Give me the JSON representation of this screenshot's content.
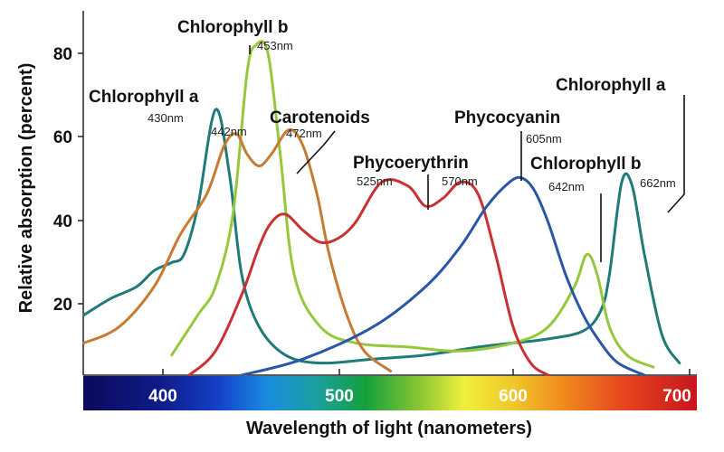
{
  "chart_data": {
    "type": "line",
    "title": "",
    "xlabel": "Wavelength of light (nanometers)",
    "ylabel": "Relative absorption (percent)",
    "xlim": [
      355,
      700
    ],
    "ylim": [
      0,
      88
    ],
    "x_ticks": [
      "400",
      "500",
      "600",
      "700"
    ],
    "y_ticks": [
      "20",
      "40",
      "60",
      "80"
    ],
    "spectrum_bar": true,
    "series": [
      {
        "key": "chl_a",
        "color": "#1f7a7a",
        "points": [
          [
            355,
            15
          ],
          [
            370,
            19
          ],
          [
            385,
            22
          ],
          [
            395,
            26
          ],
          [
            405,
            28
          ],
          [
            412,
            30
          ],
          [
            420,
            42
          ],
          [
            430,
            66
          ],
          [
            438,
            50
          ],
          [
            445,
            25
          ],
          [
            455,
            12
          ],
          [
            470,
            5
          ],
          [
            490,
            3
          ],
          [
            520,
            4
          ],
          [
            550,
            5
          ],
          [
            580,
            7
          ],
          [
            600,
            8
          ],
          [
            620,
            9
          ],
          [
            640,
            11
          ],
          [
            650,
            16
          ],
          [
            655,
            25
          ],
          [
            662,
            48
          ],
          [
            668,
            47
          ],
          [
            675,
            30
          ],
          [
            685,
            10
          ],
          [
            695,
            3
          ]
        ]
      },
      {
        "key": "chl_b",
        "color": "#96c83c",
        "points": [
          [
            405,
            5
          ],
          [
            420,
            15
          ],
          [
            430,
            22
          ],
          [
            440,
            40
          ],
          [
            448,
            75
          ],
          [
            453,
            82
          ],
          [
            460,
            80
          ],
          [
            467,
            55
          ],
          [
            475,
            25
          ],
          [
            490,
            12
          ],
          [
            510,
            8
          ],
          [
            540,
            7
          ],
          [
            570,
            6
          ],
          [
            600,
            8
          ],
          [
            620,
            12
          ],
          [
            635,
            22
          ],
          [
            642,
            30
          ],
          [
            648,
            25
          ],
          [
            655,
            12
          ],
          [
            665,
            5
          ],
          [
            680,
            2
          ]
        ]
      },
      {
        "key": "carotenoids",
        "color": "#c87a32",
        "points": [
          [
            355,
            8
          ],
          [
            375,
            12
          ],
          [
            395,
            22
          ],
          [
            410,
            35
          ],
          [
            425,
            45
          ],
          [
            435,
            57
          ],
          [
            442,
            60
          ],
          [
            448,
            55
          ],
          [
            455,
            52
          ],
          [
            462,
            55
          ],
          [
            472,
            61
          ],
          [
            480,
            57
          ],
          [
            488,
            45
          ],
          [
            495,
            30
          ],
          [
            505,
            15
          ],
          [
            515,
            6
          ],
          [
            530,
            1
          ]
        ]
      },
      {
        "key": "phycoerythrin",
        "color": "#c83232",
        "points": [
          [
            415,
            0
          ],
          [
            430,
            6
          ],
          [
            445,
            20
          ],
          [
            455,
            32
          ],
          [
            462,
            38
          ],
          [
            470,
            40
          ],
          [
            480,
            36
          ],
          [
            490,
            33
          ],
          [
            500,
            34
          ],
          [
            510,
            38
          ],
          [
            525,
            48
          ],
          [
            540,
            47
          ],
          [
            550,
            42
          ],
          [
            560,
            44
          ],
          [
            570,
            48
          ],
          [
            580,
            45
          ],
          [
            590,
            30
          ],
          [
            600,
            12
          ],
          [
            610,
            3
          ],
          [
            620,
            0
          ]
        ]
      },
      {
        "key": "phycocyanin",
        "color": "#2a56a8",
        "points": [
          [
            445,
            0
          ],
          [
            480,
            4
          ],
          [
            520,
            12
          ],
          [
            550,
            22
          ],
          [
            570,
            32
          ],
          [
            585,
            42
          ],
          [
            598,
            48
          ],
          [
            605,
            49
          ],
          [
            612,
            46
          ],
          [
            620,
            38
          ],
          [
            630,
            25
          ],
          [
            640,
            15
          ],
          [
            650,
            8
          ],
          [
            660,
            3
          ],
          [
            675,
            0
          ]
        ]
      }
    ],
    "labels": {
      "chl_a_short": "Chlorophyll a",
      "chl_b_short": "Chlorophyll b",
      "carotenoids": "Carotenoids",
      "phycoerythrin": "Phycoerythrin",
      "phycocyanin": "Phycocyanin",
      "chl_a_long": "Chlorophyll a",
      "chl_b_long": "Chlorophyll b"
    },
    "peaks": {
      "p430": "430nm",
      "p442": "442nm",
      "p453": "453nm",
      "p472": "472nm",
      "p525": "525nm",
      "p570": "570nm",
      "p605": "605nm",
      "p642": "642nm",
      "p662": "662nm"
    }
  }
}
